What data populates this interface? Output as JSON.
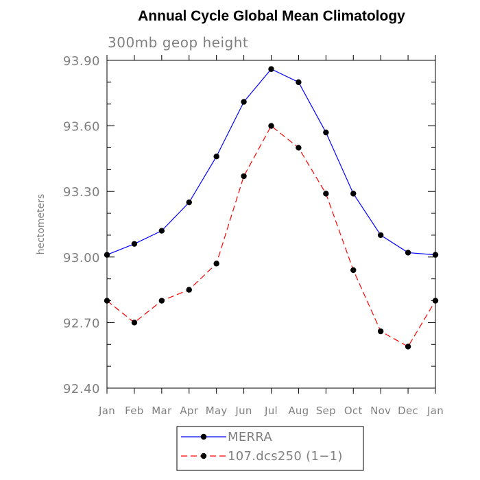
{
  "chart_data": {
    "type": "line",
    "title": "Annual Cycle Global Mean Climatology",
    "subtitle": "300mb geop height",
    "xlabel": "",
    "ylabel": "hectometers",
    "categories": [
      "Jan",
      "Feb",
      "Mar",
      "Apr",
      "May",
      "Jun",
      "Jul",
      "Aug",
      "Sep",
      "Oct",
      "Nov",
      "Dec",
      "Jan"
    ],
    "ylim": [
      92.4,
      93.9
    ],
    "yticks": [
      "93.90",
      "93.60",
      "93.30",
      "93.00",
      "92.70",
      "92.40"
    ],
    "grid": false,
    "legend_position": "bottom",
    "series": [
      {
        "name": "MERRA",
        "color": "#0000ff",
        "line_style": "solid",
        "marker": "filled-circle",
        "values": [
          93.01,
          93.06,
          93.12,
          93.25,
          93.46,
          93.71,
          93.86,
          93.8,
          93.57,
          93.29,
          93.1,
          93.02,
          93.01
        ]
      },
      {
        "name": "107.dcs250 (1−1)",
        "color": "#ff0000",
        "line_style": "dashed",
        "marker": "filled-circle",
        "values": [
          92.8,
          92.7,
          92.8,
          92.85,
          92.97,
          93.37,
          93.6,
          93.5,
          93.29,
          92.94,
          92.66,
          92.59,
          92.8
        ]
      }
    ]
  }
}
